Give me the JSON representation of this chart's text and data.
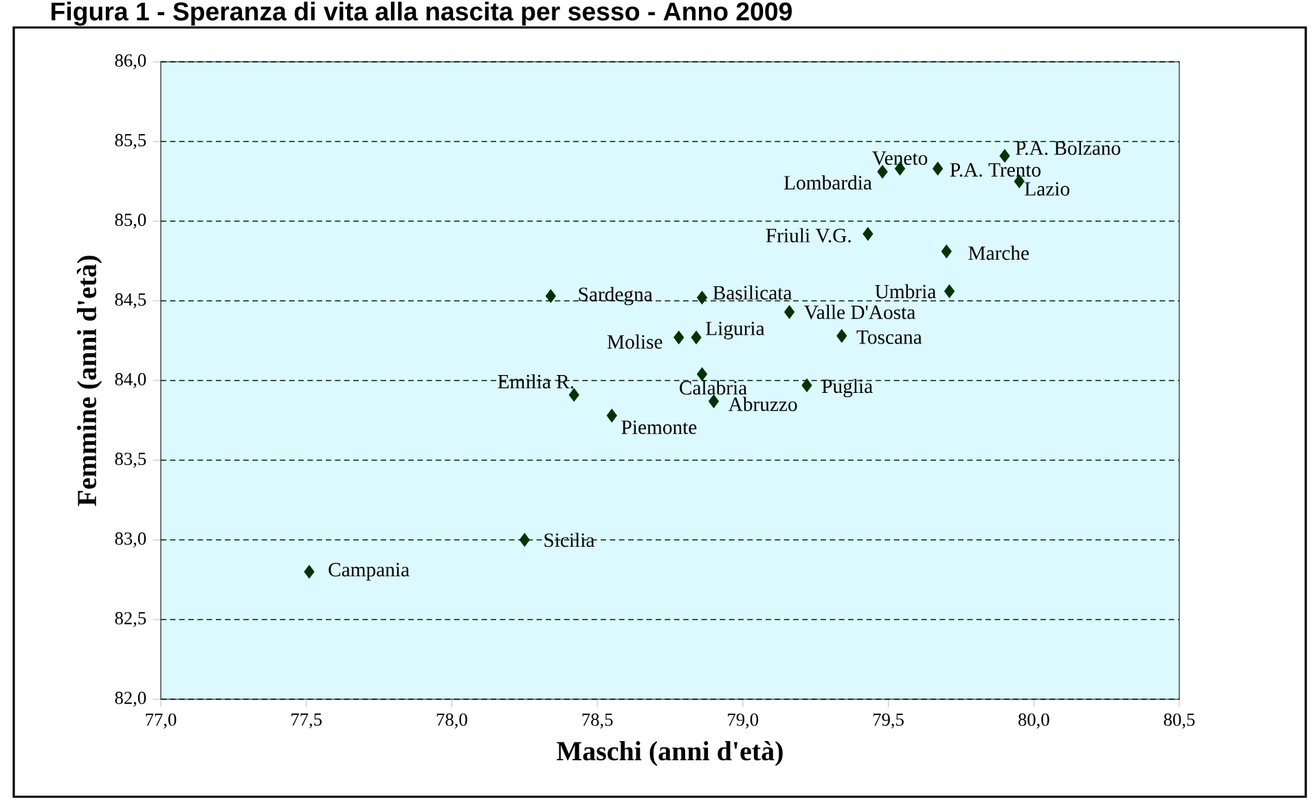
{
  "chart_data": {
    "type": "scatter",
    "title": "Figura 1 - Speranza di vita alla nascita per sesso - Anno 2009",
    "xlabel": "Maschi (anni d'età)",
    "ylabel": "Femmine (anni d'età)",
    "x": [
      77.51,
      78.25,
      78.42,
      78.55,
      78.34,
      78.86,
      78.78,
      78.84,
      78.86,
      78.9,
      79.16,
      79.22,
      79.34,
      79.43,
      79.7,
      79.71,
      79.48,
      79.54,
      79.67,
      79.9,
      79.95
    ],
    "values": [
      82.8,
      83.0,
      83.91,
      83.78,
      84.53,
      84.52,
      84.27,
      84.27,
      84.04,
      83.87,
      84.43,
      83.97,
      84.28,
      84.92,
      84.81,
      84.56,
      85.31,
      85.33,
      85.33,
      85.41,
      85.25
    ],
    "color": "#003300",
    "marker": "diamond",
    "grid": "y",
    "xlim": [
      77,
      80.5
    ],
    "ylim": [
      82,
      86
    ],
    "xticks": [
      {
        "value": 77,
        "label": "77,0"
      },
      {
        "value": 77.5,
        "label": "77,5"
      },
      {
        "value": 78,
        "label": "78,0"
      },
      {
        "value": 78.5,
        "label": "78,5"
      },
      {
        "value": 79,
        "label": "79,0"
      },
      {
        "value": 79.5,
        "label": "79,5"
      },
      {
        "value": 80,
        "label": "80,0"
      },
      {
        "value": 80.5,
        "label": "80,5"
      }
    ],
    "yticks": [
      {
        "value": 82,
        "label": "82,0"
      },
      {
        "value": 82.5,
        "label": "82,5"
      },
      {
        "value": 83,
        "label": "83,0"
      },
      {
        "value": 83.5,
        "label": "83,5"
      },
      {
        "value": 84,
        "label": "84,0"
      },
      {
        "value": 84.5,
        "label": "84,5"
      },
      {
        "value": 85,
        "label": "85,0"
      },
      {
        "value": 85.5,
        "label": "85,5"
      },
      {
        "value": 86,
        "label": "86,0"
      }
    ],
    "annotations": [
      {
        "text": "Campania",
        "x": 77.51,
        "y": 82.8
      },
      {
        "text": "Sicilia",
        "x": 78.25,
        "y": 83.0
      },
      {
        "text": "Emilia R.",
        "x": 78.42,
        "y": 83.91
      },
      {
        "text": "Piemonte",
        "x": 78.55,
        "y": 83.78
      },
      {
        "text": "Sardegna",
        "x": 78.34,
        "y": 84.53
      },
      {
        "text": "Basilicata",
        "x": 78.86,
        "y": 84.52
      },
      {
        "text": "Molise",
        "x": 78.78,
        "y": 84.27
      },
      {
        "text": "Liguria",
        "x": 78.84,
        "y": 84.27
      },
      {
        "text": "Calabria",
        "x": 78.86,
        "y": 84.04
      },
      {
        "text": "Abruzzo",
        "x": 78.9,
        "y": 83.87
      },
      {
        "text": "Valle D'Aosta",
        "x": 79.16,
        "y": 84.43
      },
      {
        "text": "Puglia",
        "x": 79.22,
        "y": 83.97
      },
      {
        "text": "Toscana",
        "x": 79.34,
        "y": 84.28
      },
      {
        "text": "Friuli V.G.",
        "x": 79.43,
        "y": 84.92
      },
      {
        "text": "Marche",
        "x": 79.7,
        "y": 84.81
      },
      {
        "text": "Umbria",
        "x": 79.71,
        "y": 84.56
      },
      {
        "text": "Lombardia",
        "x": 79.48,
        "y": 85.31
      },
      {
        "text": "Veneto",
        "x": 79.54,
        "y": 85.33
      },
      {
        "text": "P.A. Trento",
        "x": 79.67,
        "y": 85.33
      },
      {
        "text": "P.A. Bolzano",
        "x": 79.9,
        "y": 85.41
      },
      {
        "text": "Lazio",
        "x": 79.95,
        "y": 85.25
      }
    ]
  }
}
